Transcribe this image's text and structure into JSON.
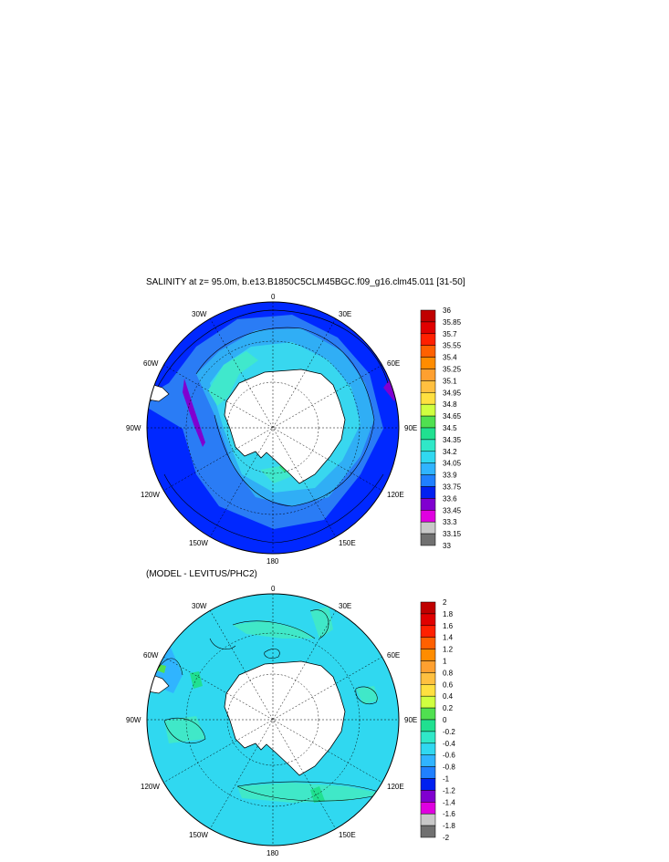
{
  "top_panel": {
    "title": "SALINITY at z=  95.0m, b.e13.B1850C5CLM45BGC.f09_g16.clm45.011 [31-50]",
    "map_labels": {
      "lon_0": "0",
      "lon_30e": "30E",
      "lon_60e": "60E",
      "lon_90e": "90E",
      "lon_120e": "120E",
      "lon_150e": "150E",
      "lon_180": "180",
      "lon_150w": "150W",
      "lon_120w": "120W",
      "lon_90w": "90W",
      "lon_60w": "60W",
      "lon_30w": "30W"
    },
    "colorbar": {
      "labels": [
        "36",
        "35.85",
        "35.7",
        "35.55",
        "35.4",
        "35.25",
        "35.1",
        "34.95",
        "34.8",
        "34.65",
        "34.5",
        "34.35",
        "34.2",
        "34.05",
        "33.9",
        "33.75",
        "33.6",
        "33.45",
        "33.3",
        "33.15",
        "33"
      ],
      "colors": [
        "#c00000",
        "#e00000",
        "#ff2000",
        "#ff6000",
        "#ff8c00",
        "#ffa030",
        "#ffc040",
        "#ffe040",
        "#d0ff40",
        "#50e050",
        "#20e090",
        "#30e8c8",
        "#30d8f0",
        "#30b4ff",
        "#2080ff",
        "#0020f0",
        "#8000d0",
        "#e000e0",
        "#c8c8c8",
        "#707070"
      ]
    },
    "field_colors": {
      "deep": "#0028ff",
      "mid": "#2a7cf5",
      "light": "#30aef5",
      "cyan": "#38d7ef",
      "teal": "#40e8cc",
      "purple": "#8000d0",
      "green": "#30e080"
    }
  },
  "bottom_panel": {
    "title": "(MODEL - LEVITUS/PHC2)",
    "map_labels": {
      "lon_0": "0",
      "lon_30e": "30E",
      "lon_60e": "60E",
      "lon_90e": "90E",
      "lon_120e": "120E",
      "lon_150e": "150E",
      "lon_180": "180",
      "lon_150w": "150W",
      "lon_120w": "120W",
      "lon_90w": "90W",
      "lon_60w": "60W",
      "lon_30w": "30W"
    },
    "colorbar": {
      "labels": [
        "2",
        "1.8",
        "1.6",
        "1.4",
        "1.2",
        "1",
        "0.8",
        "0.6",
        "0.4",
        "0.2",
        "0",
        "-0.2",
        "-0.4",
        "-0.6",
        "-0.8",
        "-1",
        "-1.2",
        "-1.4",
        "-1.6",
        "-1.8",
        "-2"
      ],
      "colors": [
        "#c00000",
        "#e00000",
        "#ff2000",
        "#ff6000",
        "#ff8c00",
        "#ffa030",
        "#ffc040",
        "#ffe040",
        "#d0ff40",
        "#50e050",
        "#20e090",
        "#30e8c8",
        "#30d8f0",
        "#30b4ff",
        "#2080ff",
        "#0020f0",
        "#8000d0",
        "#e000e0",
        "#c8c8c8",
        "#707070"
      ]
    },
    "field_colors": {
      "base": "#30d8f0",
      "teal": "#40e8c8",
      "green": "#20e090",
      "lime": "#50e050",
      "light": "#30b4ff"
    }
  }
}
